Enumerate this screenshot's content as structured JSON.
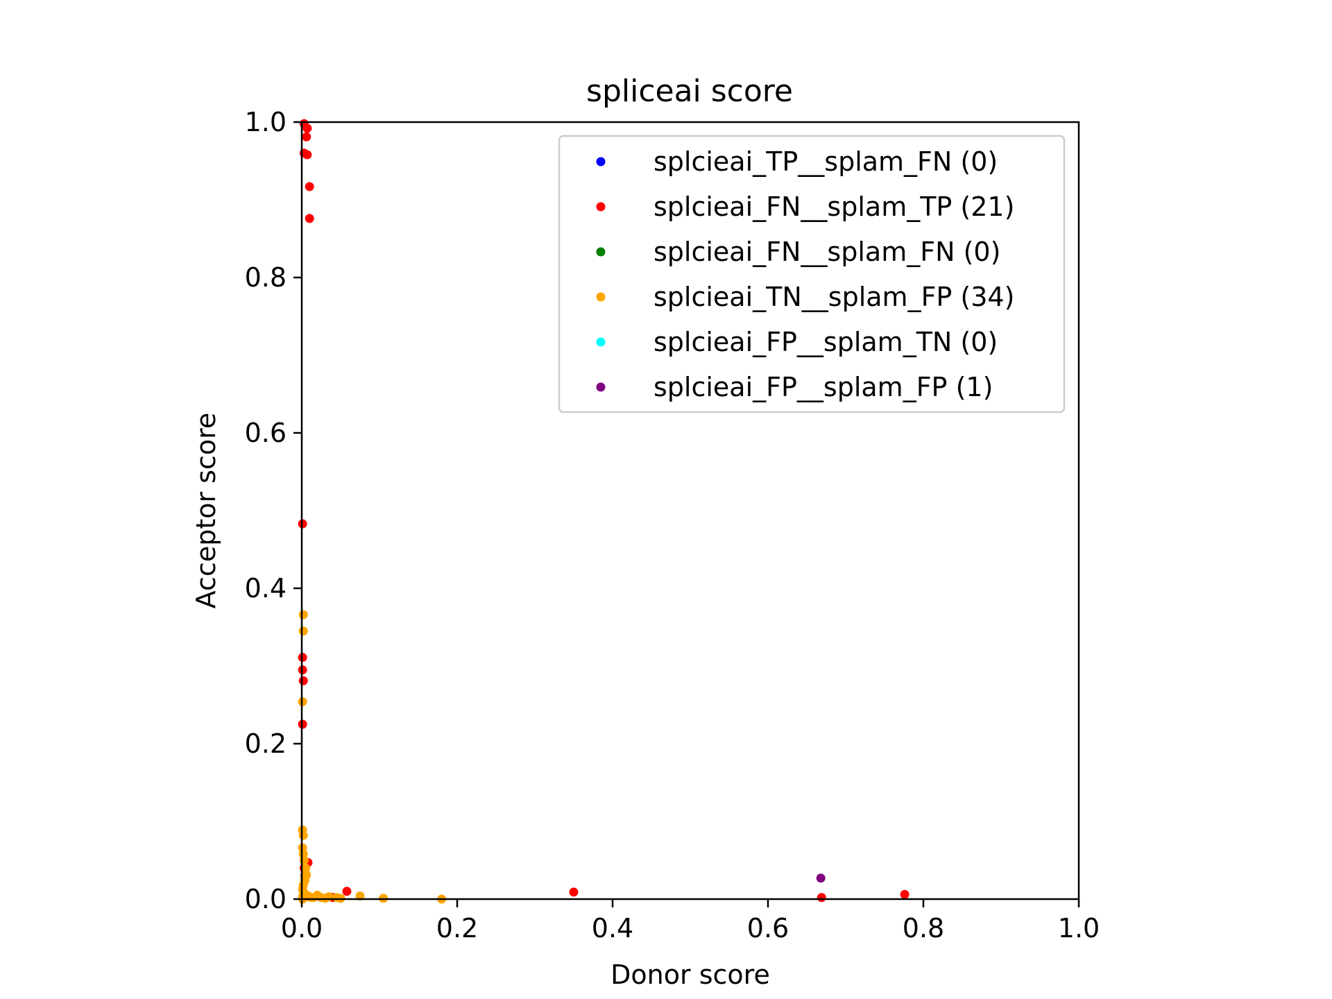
{
  "chart_data": {
    "type": "scatter",
    "title": "spliceai score",
    "xlabel": "Donor score",
    "ylabel": "Acceptor score",
    "xlim": [
      0.0,
      1.0
    ],
    "ylim": [
      0.0,
      1.0
    ],
    "xticks": [
      "0.0",
      "0.2",
      "0.4",
      "0.6",
      "0.8",
      "1.0"
    ],
    "yticks": [
      "0.0",
      "0.2",
      "0.4",
      "0.6",
      "0.8",
      "1.0"
    ],
    "grid": false,
    "legend_position": "top-right",
    "series": [
      {
        "name": "splcieai_TP__splam_FN",
        "count": "(0)",
        "color": "#0000ff",
        "points": []
      },
      {
        "name": "splcieai_FN__splam_TP",
        "count": "(21)",
        "color": "#ff0000",
        "points": [
          [
            0.003,
            0.998
          ],
          [
            0.007,
            0.992
          ],
          [
            0.006,
            0.981
          ],
          [
            0.003,
            0.96
          ],
          [
            0.007,
            0.958
          ],
          [
            0.01,
            0.917
          ],
          [
            0.01,
            0.876
          ],
          [
            0.001,
            0.483
          ],
          [
            0.001,
            0.311
          ],
          [
            0.001,
            0.295
          ],
          [
            0.002,
            0.281
          ],
          [
            0.001,
            0.225
          ],
          [
            0.008,
            0.047
          ],
          [
            0.003,
            0.04
          ],
          [
            0.004,
            0.03
          ],
          [
            0.058,
            0.01
          ],
          [
            0.04,
            0.002
          ],
          [
            0.35,
            0.009
          ],
          [
            0.776,
            0.006
          ],
          [
            0.669,
            0.002
          ],
          [
            0.02,
            0.004
          ]
        ]
      },
      {
        "name": "splcieai_FN__splam_FN",
        "count": "(0)",
        "color": "#008000",
        "points": []
      },
      {
        "name": "splcieai_TN__splam_FP",
        "count": "(34)",
        "color": "#ffa500",
        "points": [
          [
            0.002,
            0.366
          ],
          [
            0.002,
            0.345
          ],
          [
            0.001,
            0.254
          ],
          [
            0.001,
            0.089
          ],
          [
            0.002,
            0.082
          ],
          [
            0.001,
            0.066
          ],
          [
            0.002,
            0.058
          ],
          [
            0.003,
            0.05
          ],
          [
            0.005,
            0.04
          ],
          [
            0.006,
            0.031
          ],
          [
            0.004,
            0.027
          ],
          [
            0.004,
            0.024
          ],
          [
            0.002,
            0.018
          ],
          [
            0.001,
            0.013
          ],
          [
            0.002,
            0.01
          ],
          [
            0.003,
            0.008
          ],
          [
            0.004,
            0.006
          ],
          [
            0.006,
            0.005
          ],
          [
            0.008,
            0.004
          ],
          [
            0.01,
            0.003
          ],
          [
            0.012,
            0.002
          ],
          [
            0.015,
            0.002
          ],
          [
            0.02,
            0.005
          ],
          [
            0.025,
            0.002
          ],
          [
            0.03,
            0.001
          ],
          [
            0.035,
            0.003
          ],
          [
            0.045,
            0.002
          ],
          [
            0.05,
            0.001
          ],
          [
            0.075,
            0.004
          ],
          [
            0.105,
            0.001
          ],
          [
            0.18,
            0.0
          ],
          [
            0.001,
            0.003
          ],
          [
            0.002,
            0.001
          ],
          [
            0.001,
            0.0
          ]
        ]
      },
      {
        "name": "splcieai_FP__splam_TN",
        "count": "(0)",
        "color": "#00ffff",
        "points": []
      },
      {
        "name": "splcieai_FP__splam_FP",
        "count": "(1)",
        "color": "#800080",
        "points": [
          [
            0.668,
            0.027
          ]
        ]
      }
    ]
  }
}
